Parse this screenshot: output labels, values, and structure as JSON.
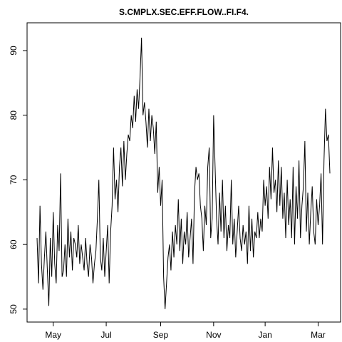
{
  "chart_data": {
    "type": "line",
    "title": "S.CMPLX.SEC.EFF.FLOW..FI.F4.",
    "categories": [
      null,
      null,
      null,
      null,
      null,
      null,
      null,
      null,
      null,
      null,
      null,
      "May",
      null,
      null,
      null,
      null,
      null,
      null,
      null,
      null,
      null,
      null,
      null,
      null,
      null,
      null,
      null,
      null,
      null,
      null,
      null,
      null,
      null,
      null,
      null,
      null,
      null,
      null,
      null,
      null,
      null,
      null,
      null,
      null,
      null,
      null,
      null,
      "Jul",
      null,
      null,
      null,
      null,
      null,
      null,
      null,
      null,
      null,
      null,
      null,
      null,
      null,
      null,
      null,
      null,
      null,
      null,
      null,
      null,
      null,
      null,
      null,
      null,
      null,
      null,
      null,
      null,
      null,
      null,
      null,
      null,
      null,
      null,
      null,
      null,
      "Sep",
      null,
      null,
      null,
      null,
      null,
      null,
      null,
      null,
      null,
      null,
      null,
      null,
      null,
      null,
      null,
      null,
      null,
      null,
      null,
      null,
      null,
      null,
      null,
      null,
      null,
      null,
      null,
      null,
      null,
      null,
      null,
      null,
      null,
      null,
      null,
      "Nov",
      null,
      null,
      null,
      null,
      null,
      null,
      null,
      null,
      null,
      null,
      null,
      null,
      null,
      null,
      null,
      null,
      null,
      null,
      null,
      null,
      null,
      null,
      null,
      null,
      null,
      null,
      null,
      null,
      null,
      null,
      null,
      null,
      null,
      null,
      "Jan",
      null,
      null,
      null,
      null,
      null,
      null,
      null,
      null,
      null,
      null,
      null,
      null,
      null,
      null,
      null,
      null,
      null,
      null,
      null,
      null,
      null,
      null,
      null,
      null,
      null,
      null,
      null,
      null,
      null,
      null,
      null,
      null,
      null,
      null,
      null,
      "Mar",
      null,
      null,
      null,
      null,
      null,
      null,
      null,
      null
    ],
    "values": [
      61,
      54,
      66,
      57,
      53,
      58,
      62,
      56,
      50.5,
      61,
      55,
      65,
      57,
      54,
      63,
      59,
      71,
      55,
      56,
      60,
      55,
      64,
      58,
      62,
      56,
      61,
      60,
      58,
      63,
      57,
      60,
      58,
      56,
      61,
      57,
      55,
      60,
      58,
      54,
      57,
      59,
      64,
      70,
      58,
      56,
      61,
      55,
      59,
      63,
      54,
      62,
      66,
      75,
      67,
      70,
      65,
      72,
      75,
      69,
      76,
      70,
      74,
      77,
      76,
      80,
      78,
      83,
      79,
      84,
      81,
      86,
      92,
      80,
      82,
      79,
      75,
      81,
      76,
      80,
      78,
      74,
      79,
      68,
      72,
      66,
      70,
      55,
      50,
      54,
      58,
      60,
      56,
      62,
      58,
      63,
      60,
      67,
      59,
      64,
      57,
      62,
      60,
      65,
      58,
      61,
      64,
      57,
      68,
      72,
      70,
      71,
      66,
      64,
      59,
      66,
      63,
      72,
      75,
      61,
      64,
      80,
      72,
      64,
      60,
      68,
      62,
      70,
      61,
      66,
      59,
      63,
      61,
      70,
      60,
      64,
      58,
      62,
      66,
      61,
      59,
      63,
      60,
      62,
      57,
      66,
      59,
      64,
      58,
      62,
      61,
      65,
      61,
      64,
      62,
      70,
      66,
      69,
      64,
      72,
      67,
      75,
      68,
      70,
      65,
      73,
      66,
      72,
      64,
      68,
      61,
      70,
      63,
      67,
      61,
      72,
      60,
      69,
      64,
      73,
      61,
      66,
      69,
      76,
      62,
      68,
      60,
      65,
      69,
      62,
      60,
      67,
      63,
      66,
      71,
      60,
      73,
      81,
      76,
      77,
      71
    ],
    "color": "#000000",
    "ylim": [
      48,
      94.3
    ],
    "yticks": [
      50,
      60,
      70,
      80,
      90
    ]
  }
}
